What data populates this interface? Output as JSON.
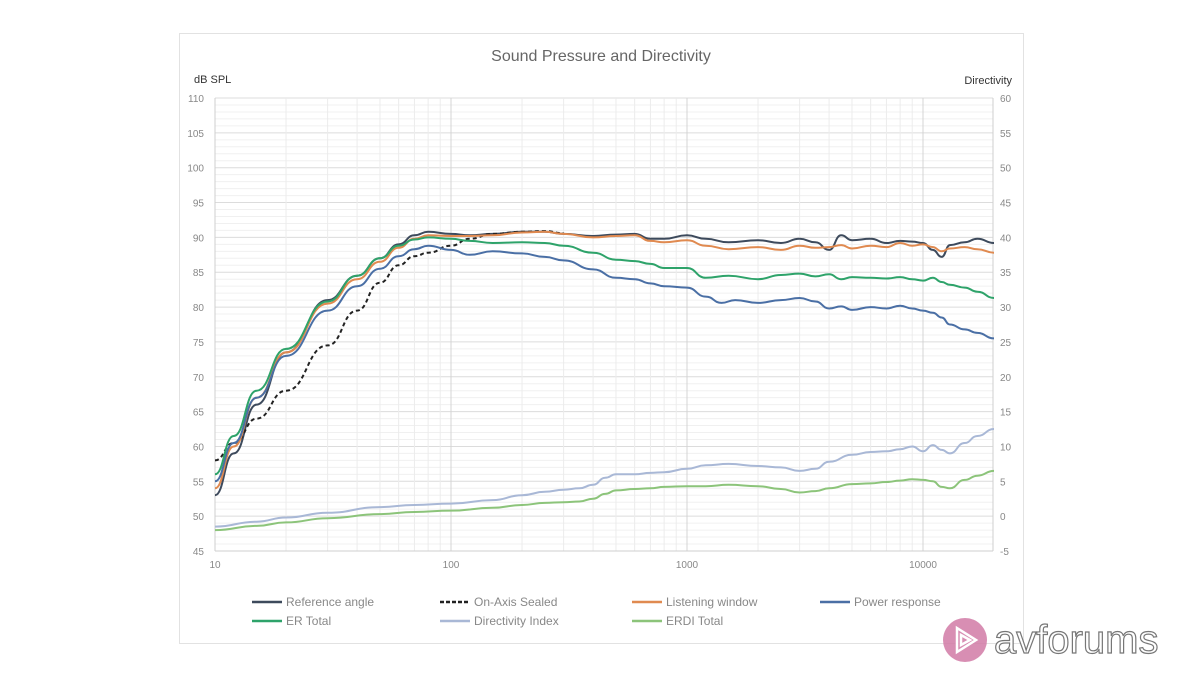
{
  "chart_data": {
    "type": "line",
    "title": "Sound Pressure and Directivity",
    "ylabel": "dB SPL",
    "y2label": "Directivity",
    "xscale": "log",
    "xlim": [
      10,
      20000
    ],
    "ylim": [
      45,
      110
    ],
    "y2lim": [
      -5,
      60
    ],
    "xticks": [
      "10",
      "100",
      "1000",
      "10000"
    ],
    "yticks": [
      "110",
      "105",
      "100",
      "95",
      "90",
      "85",
      "80",
      "75",
      "70",
      "65",
      "60",
      "55",
      "50",
      "45"
    ],
    "y2ticks": [
      "60",
      "55",
      "50",
      "45",
      "40",
      "35",
      "30",
      "25",
      "20",
      "15",
      "10",
      "5",
      "0",
      "-5"
    ],
    "grid": true,
    "legend_position": "bottom",
    "series": [
      {
        "name": "Reference angle",
        "color": "#3d4a5c",
        "dash": false,
        "axis": "left",
        "x": [
          10,
          12,
          15,
          20,
          30,
          40,
          50,
          60,
          70,
          80,
          100,
          120,
          150,
          200,
          250,
          300,
          400,
          500,
          600,
          700,
          800,
          1000,
          1200,
          1500,
          2000,
          2500,
          3000,
          3500,
          4000,
          4500,
          5000,
          6000,
          7000,
          8000,
          9000,
          10000,
          11000,
          12000,
          13000,
          15000,
          17000,
          20000
        ],
        "y": [
          53,
          59,
          66,
          73.5,
          81,
          84.5,
          87,
          89,
          90.3,
          90.8,
          90.5,
          90.3,
          90.5,
          90.8,
          90.8,
          90.5,
          90.2,
          90.4,
          90.5,
          89.8,
          89.8,
          90.3,
          89.8,
          89.3,
          89.6,
          89.2,
          89.8,
          89.3,
          88.2,
          90.3,
          89.6,
          89.8,
          89.2,
          89.5,
          89.4,
          89.2,
          88.2,
          87.2,
          88.9,
          89.3,
          89.8,
          89.2
        ]
      },
      {
        "name": "On-Axis Sealed",
        "color": "#222222",
        "dash": true,
        "axis": "left",
        "x": [
          10,
          12,
          15,
          20,
          30,
          40,
          50,
          60,
          70,
          80,
          100,
          120,
          150,
          200,
          250,
          300
        ],
        "y": [
          58,
          60.5,
          64,
          68,
          74.5,
          79.5,
          83.5,
          86,
          87.3,
          87.8,
          88.8,
          89.8,
          90.5,
          90.8,
          90.9,
          90.6
        ]
      },
      {
        "name": "Listening window",
        "color": "#e08a50",
        "dash": false,
        "axis": "left",
        "x": [
          10,
          12,
          15,
          20,
          30,
          40,
          50,
          60,
          70,
          80,
          100,
          120,
          150,
          200,
          250,
          300,
          400,
          500,
          600,
          700,
          800,
          1000,
          1200,
          1500,
          2000,
          2500,
          3000,
          3500,
          4000,
          4500,
          5000,
          6000,
          7000,
          8000,
          9000,
          10000,
          11000,
          12000,
          13000,
          15000,
          17000,
          20000
        ],
        "y": [
          54,
          60,
          67,
          73.5,
          80.5,
          84,
          86.5,
          88.5,
          89.8,
          90.3,
          90.2,
          90.2,
          90.3,
          90.7,
          90.8,
          90.5,
          90.0,
          90.2,
          90.3,
          89.5,
          89.3,
          89.6,
          88.8,
          88.3,
          88.6,
          88.2,
          88.8,
          88.5,
          88.6,
          88.9,
          88.4,
          88.8,
          88.6,
          89.2,
          88.8,
          89.0,
          88.6,
          88.0,
          88.4,
          88.6,
          88.3,
          87.8
        ]
      },
      {
        "name": "Power response",
        "color": "#4a6fa5",
        "dash": false,
        "axis": "left",
        "x": [
          10,
          12,
          15,
          20,
          30,
          40,
          50,
          60,
          70,
          80,
          100,
          120,
          150,
          200,
          250,
          300,
          400,
          500,
          600,
          700,
          800,
          1000,
          1200,
          1400,
          1600,
          2000,
          2500,
          3000,
          3500,
          4000,
          4500,
          5000,
          6000,
          7000,
          8000,
          9000,
          10000,
          11000,
          12000,
          13000,
          15000,
          17000,
          20000
        ],
        "y": [
          55,
          60.5,
          67,
          73,
          79.5,
          83,
          85.5,
          87.3,
          88.3,
          88.8,
          88.2,
          87.5,
          88.0,
          87.7,
          87.2,
          86.7,
          85.4,
          84.2,
          84.0,
          83.4,
          83.0,
          82.8,
          81.5,
          80.6,
          81.0,
          80.6,
          81.0,
          81.3,
          80.8,
          79.8,
          80.1,
          79.6,
          80.0,
          79.8,
          80.2,
          79.8,
          79.5,
          79.2,
          78.5,
          77.5,
          76.8,
          76.3,
          75.5
        ]
      },
      {
        "name": "ER Total",
        "color": "#2ea36a",
        "dash": false,
        "axis": "left",
        "x": [
          10,
          12,
          15,
          20,
          30,
          40,
          50,
          60,
          70,
          80,
          100,
          120,
          150,
          200,
          250,
          300,
          400,
          500,
          600,
          700,
          800,
          1000,
          1200,
          1500,
          2000,
          2500,
          3000,
          3500,
          4000,
          4500,
          5000,
          6000,
          7000,
          8000,
          9000,
          10000,
          11000,
          12000,
          13000,
          15000,
          17000,
          20000
        ],
        "y": [
          56,
          61.5,
          68,
          74,
          80.8,
          84.5,
          87,
          88.8,
          89.7,
          90.0,
          89.8,
          89.5,
          89.2,
          89.3,
          89.2,
          88.8,
          87.8,
          86.8,
          86.6,
          86.2,
          85.6,
          85.6,
          84.2,
          84.5,
          84.0,
          84.6,
          84.8,
          84.4,
          84.7,
          84.0,
          84.3,
          84.2,
          84.1,
          84.3,
          84.0,
          83.8,
          84.2,
          83.6,
          83.2,
          82.8,
          82.2,
          81.3
        ]
      },
      {
        "name": "Directivity Index",
        "color": "#a9b8d6",
        "dash": false,
        "axis": "right",
        "x": [
          10,
          15,
          20,
          30,
          50,
          70,
          100,
          150,
          200,
          250,
          300,
          350,
          400,
          450,
          500,
          600,
          700,
          800,
          1000,
          1200,
          1500,
          2000,
          2500,
          3000,
          3500,
          4000,
          5000,
          6000,
          7000,
          8000,
          9000,
          10000,
          11000,
          12000,
          13000,
          15000,
          17000,
          20000
        ],
        "y": [
          -1.5,
          -0.8,
          -0.2,
          0.5,
          1.3,
          1.6,
          1.8,
          2.3,
          3.0,
          3.5,
          3.8,
          4.0,
          4.5,
          5.5,
          6.0,
          6.0,
          6.2,
          6.3,
          6.8,
          7.3,
          7.5,
          7.2,
          7.0,
          6.5,
          6.8,
          7.8,
          8.8,
          9.2,
          9.3,
          9.6,
          10.0,
          9.3,
          10.2,
          9.5,
          9.0,
          10.5,
          11.5,
          12.5
        ]
      },
      {
        "name": "ERDI Total",
        "color": "#8cc47a",
        "dash": false,
        "axis": "right",
        "x": [
          10,
          15,
          20,
          30,
          50,
          70,
          100,
          150,
          200,
          250,
          300,
          350,
          400,
          450,
          500,
          600,
          700,
          800,
          1000,
          1200,
          1500,
          2000,
          2500,
          3000,
          3500,
          4000,
          5000,
          6000,
          7000,
          8000,
          9000,
          10000,
          11000,
          12000,
          13000,
          15000,
          17000,
          20000
        ],
        "y": [
          -2.0,
          -1.4,
          -0.9,
          -0.3,
          0.3,
          0.6,
          0.8,
          1.2,
          1.6,
          1.9,
          2.0,
          2.1,
          2.5,
          3.2,
          3.7,
          3.9,
          4.0,
          4.2,
          4.3,
          4.3,
          4.5,
          4.3,
          3.9,
          3.4,
          3.6,
          4.0,
          4.6,
          4.7,
          4.9,
          5.1,
          5.3,
          5.2,
          5.0,
          4.2,
          4.0,
          5.2,
          5.8,
          6.5
        ]
      }
    ]
  },
  "watermark": {
    "brand": "avforums",
    "logo_color": "#d17aa6",
    "icon": "play-triangle-icon"
  }
}
